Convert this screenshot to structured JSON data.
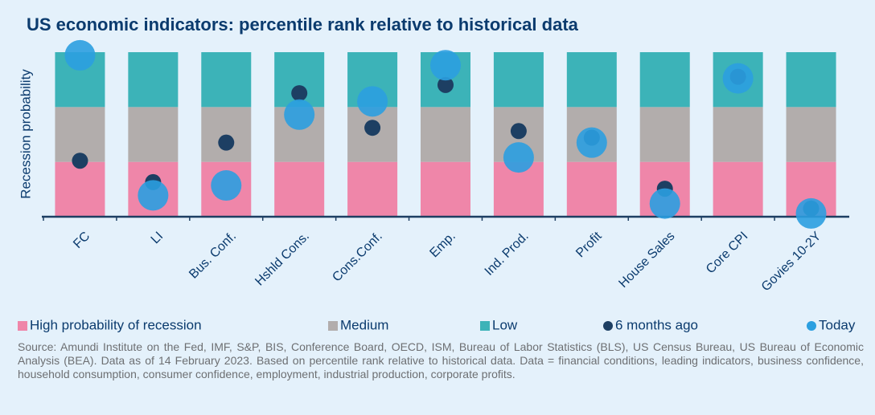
{
  "chart_data": {
    "type": "bar",
    "title": "US economic indicators: percentile rank relative to historical data",
    "y_label": "Recession probability",
    "categories": [
      "FC",
      "LI",
      "Bus. Conf.",
      "Hshld Cons.",
      "Cons.Conf.",
      "Emp.",
      "Ind. Prod.",
      "Profit",
      "House Sales",
      "Core CPI",
      "Govies 10-2Y"
    ],
    "ylim": [
      0,
      99.9
    ],
    "series": [
      {
        "name": "High probability of recession",
        "type": "bar",
        "color": "#ef86a9",
        "values": [
          33.3,
          33.3,
          33.3,
          33.3,
          33.3,
          33.3,
          33.3,
          33.3,
          33.3,
          33.3,
          33.3
        ]
      },
      {
        "name": "Medium",
        "type": "bar",
        "color": "#b2adac",
        "values": [
          33.3,
          33.3,
          33.3,
          33.3,
          33.3,
          33.3,
          33.3,
          33.3,
          33.3,
          33.3,
          33.3
        ]
      },
      {
        "name": "Low",
        "type": "bar",
        "color": "#3cb3b8",
        "values": [
          33.3,
          33.3,
          33.3,
          33.3,
          33.3,
          33.3,
          33.3,
          33.3,
          33.3,
          33.3,
          33.3
        ]
      },
      {
        "name": "6 months ago",
        "type": "scatter",
        "color": "#1d3f63",
        "values": [
          34,
          21,
          45,
          75,
          54,
          80,
          52,
          48,
          17,
          85,
          5
        ]
      },
      {
        "name": "Today",
        "type": "scatter",
        "color": "#2b9fe0",
        "values": [
          98,
          13,
          19,
          62,
          70,
          92,
          36,
          45,
          8,
          84,
          2
        ]
      }
    ],
    "source": "Source: Amundi Institute on the Fed, IMF, S&P, BIS, Conference Board, OECD, ISM, Bureau of Labor Statistics (BLS), US Census Bureau, US Bureau of Economic Analysis (BEA). Data as of 14 February 2023. Based on percentile rank relative to historical data. Data = financial conditions, leading indicators, business confidence, household consumption, consumer confidence, employment, industrial production, corporate profits."
  }
}
